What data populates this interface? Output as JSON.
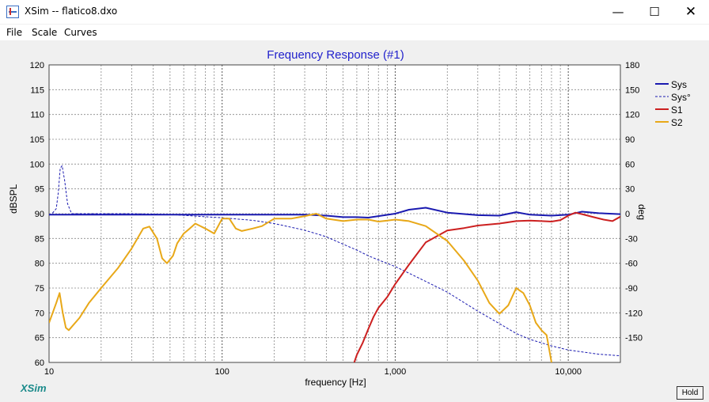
{
  "window": {
    "title": "XSim -- flatico8.dxo",
    "minimize": "—",
    "maximize": "☐",
    "close": "✕"
  },
  "menu": {
    "file": "File",
    "scale": "Scale",
    "curves": "Curves"
  },
  "brand": "XSim",
  "hold_label": "Hold",
  "colors": {
    "sys": "#1a1ab0",
    "sys_phase": "#1a1ab0",
    "s1": "#cc2020",
    "s2": "#e8a818",
    "title": "#2222cc"
  },
  "chart_data": {
    "type": "line",
    "title": "Frequency Response (#1)",
    "xlabel": "frequency [Hz]",
    "ylabel": "dBSPL",
    "y2label": "deg",
    "xscale": "log",
    "xlim": [
      10,
      20000
    ],
    "ylim": [
      60,
      120
    ],
    "y2lim": [
      -180,
      180
    ],
    "grid": true,
    "legend_position": "top-right",
    "x_ticks": [
      "10",
      "100",
      "1,000",
      "10,000"
    ],
    "y_ticks": [
      "60",
      "65",
      "70",
      "75",
      "80",
      "85",
      "90",
      "95",
      "100",
      "105",
      "110",
      "115",
      "120"
    ],
    "y2_ticks": [
      "180",
      "150",
      "120",
      "90",
      "60",
      "30",
      "0",
      "-30",
      "-60",
      "-90",
      "-120",
      "-150"
    ],
    "series": [
      {
        "name": "Sys",
        "axis": "left",
        "style": "solid",
        "x": [
          10,
          11,
          12,
          13,
          15,
          20,
          30,
          50,
          70,
          100,
          150,
          200,
          300,
          400,
          500,
          600,
          700,
          800,
          1000,
          1200,
          1500,
          2000,
          3000,
          4000,
          5000,
          6000,
          8000,
          10000,
          12000,
          15000,
          20000
        ],
        "y": [
          89.8,
          89.8,
          89.8,
          89.8,
          89.8,
          89.8,
          89.8,
          89.8,
          89.8,
          89.8,
          89.8,
          89.8,
          89.8,
          89.6,
          89.3,
          89.3,
          89.2,
          89.5,
          90.0,
          90.8,
          91.2,
          90.2,
          89.7,
          89.6,
          90.3,
          89.8,
          89.6,
          89.8,
          90.4,
          90.1,
          89.9
        ]
      },
      {
        "name": "Sys°",
        "axis": "right",
        "style": "dashed",
        "x": [
          10,
          10.5,
          11,
          11.3,
          11.6,
          11.9,
          12.3,
          12.8,
          13.5,
          15,
          20,
          30,
          50,
          70,
          100,
          150,
          200,
          300,
          400,
          500,
          600,
          700,
          800,
          1000,
          1200,
          1500,
          2000,
          3000,
          4000,
          5000,
          6000,
          8000,
          10000,
          15000,
          20000
        ],
        "y": [
          -2,
          1,
          6,
          25,
          55,
          58,
          40,
          12,
          0,
          0,
          0,
          0,
          -1,
          -3,
          -5,
          -8,
          -12,
          -20,
          -28,
          -37,
          -44,
          -51,
          -56,
          -64,
          -72,
          -82,
          -95,
          -118,
          -133,
          -145,
          -152,
          -160,
          -165,
          -170,
          -172
        ]
      },
      {
        "name": "S1",
        "axis": "left",
        "style": "solid",
        "x": [
          580,
          600,
          650,
          700,
          750,
          800,
          900,
          1000,
          1200,
          1500,
          2000,
          2500,
          3000,
          4000,
          5000,
          6000,
          7000,
          8000,
          9000,
          10000,
          11000,
          12000,
          14000,
          16000,
          18000,
          20000
        ],
        "y": [
          60,
          61.5,
          64,
          66.8,
          69.2,
          71,
          73.2,
          75.8,
          79.7,
          84.2,
          86.6,
          87.1,
          87.6,
          88,
          88.5,
          88.6,
          88.5,
          88.4,
          88.7,
          89.6,
          90.2,
          89.9,
          89.3,
          88.8,
          88.5,
          89.4
        ]
      },
      {
        "name": "S2",
        "axis": "left",
        "style": "solid",
        "x": [
          10,
          11,
          11.5,
          12,
          12.5,
          13,
          15,
          17,
          20,
          25,
          30,
          35,
          38,
          42,
          45,
          48,
          52,
          55,
          60,
          65,
          70,
          80,
          90,
          100,
          110,
          120,
          130,
          150,
          170,
          200,
          250,
          300,
          350,
          400,
          500,
          600,
          700,
          800,
          900,
          1000,
          1200,
          1500,
          2000,
          2500,
          3000,
          3500,
          4000,
          4500,
          5000,
          5500,
          6000,
          6500,
          7000,
          7500,
          8000
        ],
        "y": [
          68,
          72,
          74,
          70,
          67,
          66.5,
          69,
          72,
          75,
          79,
          83,
          87,
          87.4,
          85,
          81,
          80,
          81.5,
          84,
          86,
          87,
          88,
          87,
          86,
          89,
          89,
          87,
          86.5,
          87,
          87.5,
          89,
          89,
          89.5,
          90,
          89,
          88.5,
          88.8,
          88.8,
          88.4,
          88.6,
          88.8,
          88.5,
          87.5,
          84.5,
          80.5,
          76.5,
          72,
          69.8,
          71.5,
          75,
          74,
          71.5,
          68,
          66.5,
          65.5,
          60
        ]
      }
    ]
  }
}
